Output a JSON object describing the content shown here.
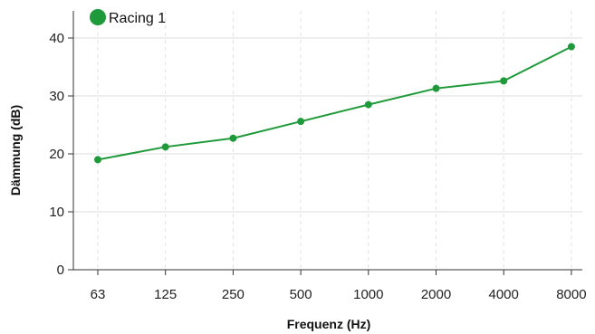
{
  "chart_data": {
    "type": "line",
    "categories": [
      "63",
      "125",
      "250",
      "500",
      "1000",
      "2000",
      "4000",
      "8000"
    ],
    "series": [
      {
        "name": "Racing 1",
        "values": [
          19.0,
          21.2,
          22.7,
          25.6,
          28.5,
          31.3,
          32.6,
          38.5
        ],
        "color": "#1f9a3b"
      }
    ],
    "xlabel": "Frequenz (Hz)",
    "ylabel": "Dämmung (dB)",
    "ylim": [
      0,
      40
    ],
    "yticks": [
      0,
      10,
      20,
      30,
      40
    ],
    "grid": true,
    "legend": "top-left"
  }
}
